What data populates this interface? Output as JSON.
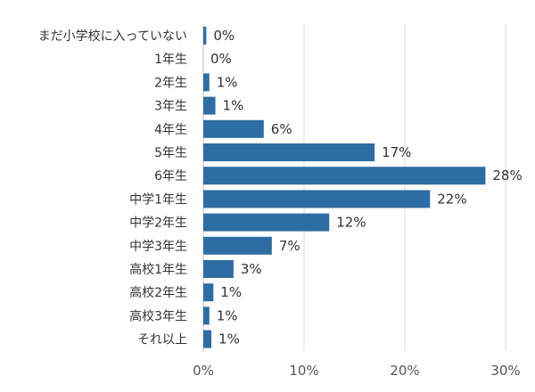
{
  "chart_data": {
    "type": "bar",
    "orientation": "horizontal",
    "categories": [
      "まだ小学校に入っていない",
      "1年生",
      "2年生",
      "3年生",
      "4年生",
      "5年生",
      "6年生",
      "中学1年生",
      "中学2年生",
      "中学3年生",
      "高校1年生",
      "高校2年生",
      "高校3年生",
      "それ以上"
    ],
    "values": [
      0.3,
      0.0,
      0.6,
      1.2,
      6.0,
      17.0,
      28.0,
      22.5,
      12.5,
      6.8,
      3.0,
      1.0,
      0.6,
      0.8
    ],
    "value_labels": [
      "0%",
      "0%",
      "1%",
      "1%",
      "6%",
      "17%",
      "28%",
      "22%",
      "12%",
      "7%",
      "3%",
      "1%",
      "1%",
      "1%"
    ],
    "x_ticks": [
      0,
      10,
      20,
      30
    ],
    "x_tick_labels": [
      "0%",
      "10%",
      "20%",
      "30%"
    ],
    "xlim": [
      0,
      30
    ],
    "grid": true,
    "bar_color": "#2e6da4",
    "title": "",
    "xlabel": "",
    "ylabel": ""
  }
}
